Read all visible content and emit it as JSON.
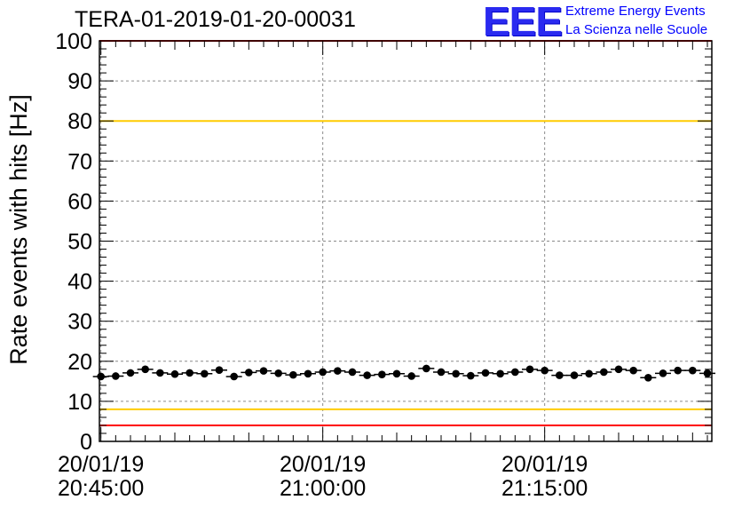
{
  "title": "TERA-01-2019-01-20-00031",
  "logo": {
    "mark": "EEE",
    "line1": "Extreme Energy Events",
    "line2": "La Scienza nelle Scuole"
  },
  "chart_data": {
    "type": "scatter",
    "title": "TERA-01-2019-01-20-00031",
    "xlabel": "",
    "ylabel": "Rate events with hits [Hz]",
    "ylim": [
      0,
      100
    ],
    "grid": true,
    "x_ticks": [
      {
        "t": 0,
        "line1": "20/01/19",
        "line2": "20:45:00"
      },
      {
        "t": 15,
        "line1": "20/01/19",
        "line2": "21:00:00"
      },
      {
        "t": 30,
        "line1": "20/01/19",
        "line2": "21:15:00"
      }
    ],
    "y_ticks": [
      0,
      10,
      20,
      30,
      40,
      50,
      60,
      70,
      80,
      90,
      100
    ],
    "reference_lines": [
      {
        "y": 100,
        "color": "#ff0000"
      },
      {
        "y": 80,
        "color": "#ffcc00"
      },
      {
        "y": 8,
        "color": "#ffcc00"
      },
      {
        "y": 4,
        "color": "#ff0000"
      }
    ],
    "series": [
      {
        "values": [
          16.2,
          16.3,
          17.1,
          18.0,
          17.1,
          16.8,
          17.1,
          16.9,
          17.8,
          16.2,
          17.2,
          17.6,
          17.0,
          16.6,
          16.9,
          17.3,
          17.6,
          17.3,
          16.5,
          16.7,
          16.9,
          16.3,
          18.2,
          17.3,
          16.9,
          16.4,
          17.1,
          16.9,
          17.3,
          18.0,
          17.7,
          16.5,
          16.5,
          16.9,
          17.3,
          18.0,
          17.7,
          15.9,
          17.0,
          17.7,
          17.7,
          17.0
        ],
        "color": "#000000"
      }
    ]
  }
}
